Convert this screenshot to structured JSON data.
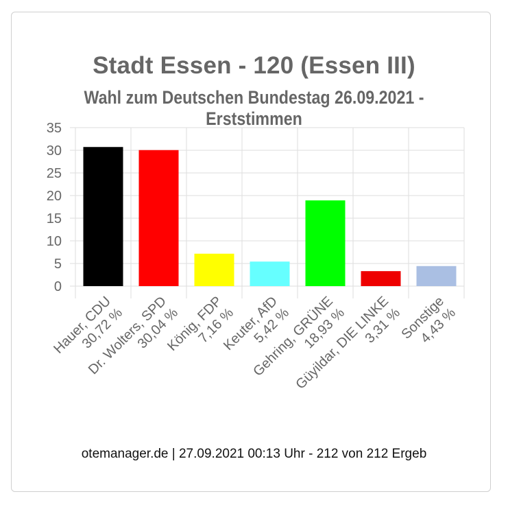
{
  "title": "Stadt Essen - 120 (Essen III)",
  "subtitle": "Wahl zum Deutschen Bundestag 26.09.2021  - Erststimmen",
  "footer": "otemanager.de | 27.09.2021 00:13 Uhr - 212 von 212 Ergeb",
  "chart_data": {
    "type": "bar",
    "title": "Stadt Essen - 120 (Essen III)",
    "subtitle": "Wahl zum Deutschen Bundestag 26.09.2021  - Erststimmen",
    "categories": [
      {
        "name": "Hauer, CDU",
        "label": "30,72 %"
      },
      {
        "name": "Dr. Wolters, SPD",
        "label": "30,04 %"
      },
      {
        "name": "König, FDP",
        "label": "7,16 %"
      },
      {
        "name": "Keuter, AfD",
        "label": "5,42 %"
      },
      {
        "name": "Gehring, GRÜNE",
        "label": "18,93 %"
      },
      {
        "name": "Güyildar, DIE LINKE",
        "label": "3,31 %"
      },
      {
        "name": "Sonstige",
        "label": "4,43 %"
      }
    ],
    "values": [
      30.72,
      30.04,
      7.16,
      5.42,
      18.93,
      3.31,
      4.43
    ],
    "colors": [
      "#000000",
      "#ff0000",
      "#ffff00",
      "#66ffff",
      "#00ff00",
      "#ee0000",
      "#aabfe3"
    ],
    "yticks": [
      "0",
      "5",
      "10",
      "15",
      "20",
      "25",
      "30",
      "35"
    ],
    "ylim": [
      0,
      35
    ],
    "grid": true,
    "xlabel": "",
    "ylabel": ""
  }
}
